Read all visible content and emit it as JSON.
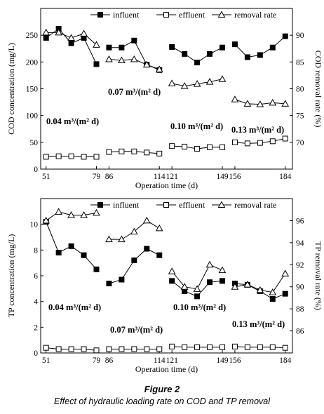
{
  "caption": {
    "title": "Figure 2",
    "text": "Effect of hydraulic loading rate on COD and TP removal"
  },
  "colors": {
    "ink": "#000000",
    "paper": "#ffffff"
  },
  "chart_data": [
    {
      "type": "line",
      "panel": "COD",
      "xlabel": "Operation time (d)",
      "ylabel": "COD concentration (mg/L)",
      "y2label": "COD removal rate (%)",
      "xlim": [
        48,
        188
      ],
      "ylim": [
        0,
        300
      ],
      "y2lim": [
        65,
        95
      ],
      "xticks": [
        51,
        79,
        86,
        114,
        121,
        149,
        156,
        184
      ],
      "yticks": [
        0,
        50,
        100,
        150,
        200,
        250
      ],
      "y2ticks": [
        70,
        75,
        80,
        85,
        90
      ],
      "legend": [
        "influent",
        "effluent",
        "removal rate"
      ],
      "legend_position": "top",
      "stages": [
        {
          "label": "0.04 m³/(m² d)",
          "x": [
            51,
            58,
            65,
            72,
            79
          ],
          "influent": [
            245,
            262,
            235,
            245,
            196
          ],
          "effluent": [
            23,
            24,
            24,
            23,
            23
          ],
          "removal_rate": [
            90.5,
            90.5,
            89.5,
            90.3,
            88.2
          ]
        },
        {
          "label": "0.07 m³/(m² d)",
          "x": [
            86,
            93,
            100,
            107,
            114
          ],
          "influent": [
            227,
            227,
            240,
            195,
            185
          ],
          "effluent": [
            32,
            33,
            33,
            31,
            29
          ],
          "removal_rate": [
            85.5,
            85.3,
            85.5,
            84.5,
            83.6
          ]
        },
        {
          "label": "0.10 m³/(m² d)",
          "x": [
            121,
            128,
            135,
            142,
            149
          ],
          "influent": [
            228,
            215,
            199,
            215,
            227
          ],
          "effluent": [
            43,
            42,
            38,
            41,
            41
          ],
          "removal_rate": [
            81.0,
            80.5,
            80.9,
            81.3,
            81.8
          ]
        },
        {
          "label": "0.13 m³/(m² d)",
          "x": [
            156,
            163,
            170,
            177,
            184
          ],
          "influent": [
            233,
            209,
            213,
            227,
            248
          ],
          "effluent": [
            50,
            48,
            49,
            52,
            57
          ],
          "removal_rate": [
            78.0,
            77.2,
            77.1,
            77.4,
            77.2
          ]
        }
      ]
    },
    {
      "type": "line",
      "panel": "TP",
      "xlabel": "Operation time (d)",
      "ylabel": "TP concentration (mg/L)",
      "y2label": "TP removal rate (%)",
      "xlim": [
        48,
        188
      ],
      "ylim": [
        0,
        12
      ],
      "y2lim": [
        84,
        98
      ],
      "xticks": [
        51,
        79,
        86,
        114,
        121,
        149,
        156,
        184
      ],
      "yticks": [
        0,
        2,
        4,
        6,
        8,
        10
      ],
      "y2ticks": [
        86,
        88,
        90,
        92,
        94,
        96
      ],
      "legend": [
        "influent",
        "effluent",
        "removal rate"
      ],
      "legend_position": "top",
      "stages": [
        {
          "label": "0.04 m³/(m² d)",
          "x": [
            51,
            58,
            65,
            72,
            79
          ],
          "influent": [
            10.2,
            7.8,
            8.3,
            7.6,
            6.5
          ],
          "effluent": [
            0.4,
            0.3,
            0.3,
            0.3,
            0.2
          ],
          "removal_rate": [
            96.0,
            96.8,
            96.5,
            96.5,
            96.7
          ]
        },
        {
          "label": "0.07 m³/(m² d)",
          "x": [
            86,
            93,
            100,
            107,
            114
          ],
          "influent": [
            5.4,
            5.7,
            7.2,
            8.1,
            7.6
          ],
          "effluent": [
            0.3,
            0.3,
            0.3,
            0.3,
            0.3
          ],
          "removal_rate": [
            94.3,
            94.3,
            95.0,
            96.0,
            95.3
          ]
        },
        {
          "label": "0.10 m³/(m² d)",
          "x": [
            121,
            128,
            135,
            142,
            149
          ],
          "influent": [
            5.6,
            4.8,
            4.4,
            5.5,
            5.6
          ],
          "effluent": [
            0.5,
            0.45,
            0.45,
            0.45,
            0.45
          ],
          "removal_rate": [
            91.4,
            90.0,
            89.8,
            92.0,
            91.5
          ]
        },
        {
          "label": "0.13 m³/(m² d)",
          "x": [
            156,
            163,
            170,
            177,
            184
          ],
          "influent": [
            5.4,
            5.3,
            4.8,
            4.2,
            4.6
          ],
          "effluent": [
            0.5,
            0.45,
            0.45,
            0.45,
            0.4
          ],
          "removal_rate": [
            90.0,
            90.2,
            89.7,
            89.5,
            91.2
          ]
        }
      ]
    }
  ]
}
